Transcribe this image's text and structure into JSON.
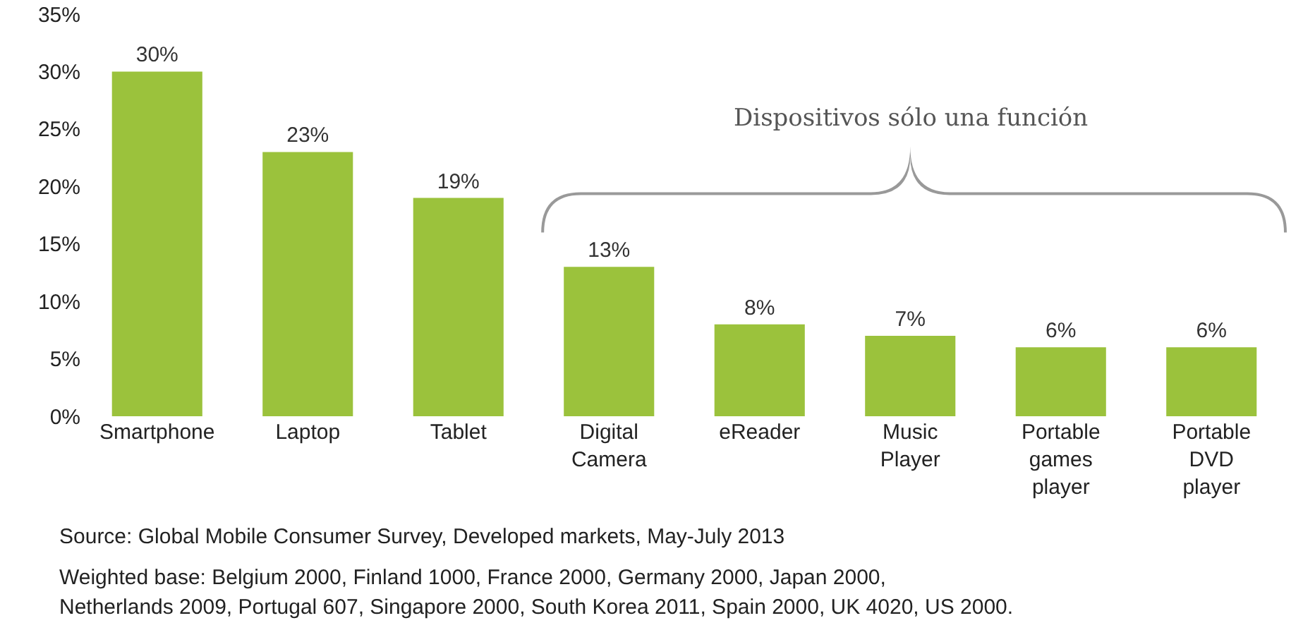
{
  "chart_data": {
    "type": "bar",
    "categories": [
      "Smartphone",
      "Laptop",
      "Tablet",
      "Digital Camera",
      "eReader",
      "Music Player",
      "Portable games player",
      "Portable DVD player"
    ],
    "values": [
      30,
      23,
      19,
      13,
      8,
      7,
      6,
      6
    ],
    "value_labels": [
      "30%",
      "23%",
      "19%",
      "13%",
      "8%",
      "7%",
      "6%",
      "6%"
    ],
    "color": "#9bc23c",
    "ylim": [
      0,
      35
    ],
    "yticks": [
      {
        "value": 0,
        "label": "0%"
      },
      {
        "value": 5,
        "label": "5%"
      },
      {
        "value": 10,
        "label": "10%"
      },
      {
        "value": 15,
        "label": "15%"
      },
      {
        "value": 20,
        "label": "20%"
      },
      {
        "value": 25,
        "label": "25%"
      },
      {
        "value": 30,
        "label": "30%"
      },
      {
        "value": 35,
        "label": "35%"
      }
    ],
    "grid": false,
    "annotations": [
      "Dispositivos sólo una función",
      "Source: Global Mobile Consumer Survey, Developed markets, May-July 2013",
      "Weighted base: Belgium 2000, Finland 1000, France 2000, Germany 2000, Japan 2000,",
      "Netherlands 2009, Portugal 607, Singapore 2000, South Korea 2011, Spain 2000, UK 4020, US 2000."
    ]
  }
}
